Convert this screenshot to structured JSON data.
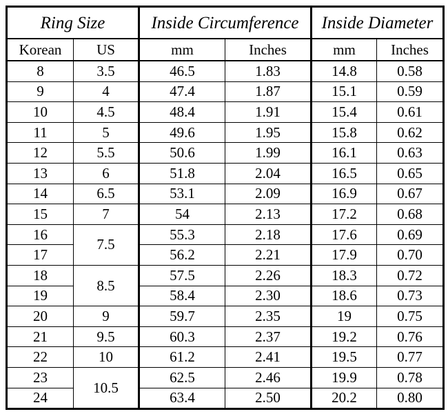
{
  "header": {
    "groups": [
      "Ring Size",
      "Inside Circumference",
      "Inside Diameter"
    ],
    "columns": [
      "Korean",
      "US",
      "mm",
      "Inches",
      "mm",
      "Inches"
    ]
  },
  "table": {
    "rows": [
      {
        "korean": "8",
        "us": "3.5",
        "circ_mm": "46.5",
        "circ_in": "1.83",
        "dia_mm": "14.8",
        "dia_in": "0.58"
      },
      {
        "korean": "9",
        "us": "4",
        "circ_mm": "47.4",
        "circ_in": "1.87",
        "dia_mm": "15.1",
        "dia_in": "0.59"
      },
      {
        "korean": "10",
        "us": "4.5",
        "circ_mm": "48.4",
        "circ_in": "1.91",
        "dia_mm": "15.4",
        "dia_in": "0.61"
      },
      {
        "korean": "11",
        "us": "5",
        "circ_mm": "49.6",
        "circ_in": "1.95",
        "dia_mm": "15.8",
        "dia_in": "0.62"
      },
      {
        "korean": "12",
        "us": "5.5",
        "circ_mm": "50.6",
        "circ_in": "1.99",
        "dia_mm": "16.1",
        "dia_in": "0.63"
      },
      {
        "korean": "13",
        "us": "6",
        "circ_mm": "51.8",
        "circ_in": "2.04",
        "dia_mm": "16.5",
        "dia_in": "0.65"
      },
      {
        "korean": "14",
        "us": "6.5",
        "circ_mm": "53.1",
        "circ_in": "2.09",
        "dia_mm": "16.9",
        "dia_in": "0.67"
      },
      {
        "korean": "15",
        "us": "7",
        "circ_mm": "54",
        "circ_in": "2.13",
        "dia_mm": "17.2",
        "dia_in": "0.68"
      },
      {
        "korean": "16",
        "us": "7.5",
        "circ_mm": "55.3",
        "circ_in": "2.18",
        "dia_mm": "17.6",
        "dia_in": "0.69"
      },
      {
        "korean": "17",
        "circ_mm": "56.2",
        "circ_in": "2.21",
        "dia_mm": "17.9",
        "dia_in": "0.70"
      },
      {
        "korean": "18",
        "us": "8.5",
        "circ_mm": "57.5",
        "circ_in": "2.26",
        "dia_mm": "18.3",
        "dia_in": "0.72"
      },
      {
        "korean": "19",
        "circ_mm": "58.4",
        "circ_in": "2.30",
        "dia_mm": "18.6",
        "dia_in": "0.73"
      },
      {
        "korean": "20",
        "us": "9",
        "circ_mm": "59.7",
        "circ_in": "2.35",
        "dia_mm": "19",
        "dia_in": "0.75"
      },
      {
        "korean": "21",
        "us": "9.5",
        "circ_mm": "60.3",
        "circ_in": "2.37",
        "dia_mm": "19.2",
        "dia_in": "0.76"
      },
      {
        "korean": "22",
        "us": "10",
        "circ_mm": "61.2",
        "circ_in": "2.41",
        "dia_mm": "19.5",
        "dia_in": "0.77"
      },
      {
        "korean": "23",
        "us": "10.5",
        "circ_mm": "62.5",
        "circ_in": "2.46",
        "dia_mm": "19.9",
        "dia_in": "0.78"
      },
      {
        "korean": "24",
        "circ_mm": "63.4",
        "circ_in": "2.50",
        "dia_mm": "20.2",
        "dia_in": "0.80"
      }
    ]
  }
}
